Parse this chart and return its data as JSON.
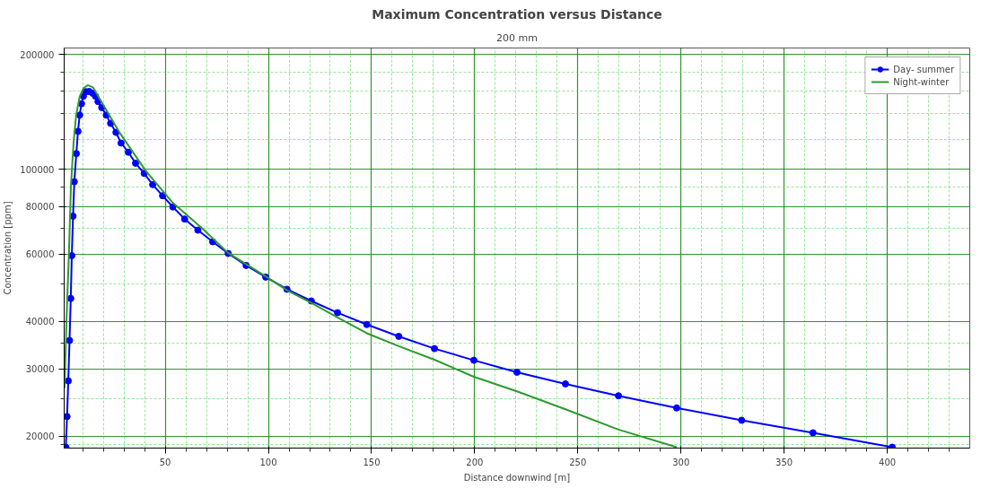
{
  "chart_data": {
    "type": "line",
    "title": "Maximum Concentration versus Distance",
    "subtitle": "200 mm",
    "xlabel": "Distance downwind [m]",
    "ylabel": "Concentration [ppm]",
    "log": "y",
    "grid": true,
    "legend": "top right",
    "line_style": "solid",
    "xlim": [
      1,
      440
    ],
    "ylim": [
      18600,
      208000
    ],
    "xticks": [
      {
        "value": 10,
        "label": null
      },
      {
        "value": 20,
        "label": null
      },
      {
        "value": 30,
        "label": null
      },
      {
        "value": 40,
        "label": null
      },
      50,
      {
        "value": 60,
        "label": null
      },
      {
        "value": 70,
        "label": null
      },
      {
        "value": 80,
        "label": null
      },
      {
        "value": 90,
        "label": null
      },
      100,
      {
        "value": 110,
        "label": null
      },
      {
        "value": 120,
        "label": null
      },
      {
        "value": 130,
        "label": null
      },
      {
        "value": 140,
        "label": null
      },
      150,
      {
        "value": 160,
        "label": null
      },
      {
        "value": 170,
        "label": null
      },
      {
        "value": 180,
        "label": null
      },
      {
        "value": 190,
        "label": null
      },
      200,
      {
        "value": 210,
        "label": null
      },
      {
        "value": 220,
        "label": null
      },
      {
        "value": 230,
        "label": null
      },
      {
        "value": 240,
        "label": null
      },
      250,
      {
        "value": 260,
        "label": null
      },
      {
        "value": 270,
        "label": null
      },
      {
        "value": 280,
        "label": null
      },
      {
        "value": 290,
        "label": null
      },
      300,
      {
        "value": 310,
        "label": null
      },
      {
        "value": 320,
        "label": null
      },
      {
        "value": 330,
        "label": null
      },
      {
        "value": 340,
        "label": null
      },
      350,
      {
        "value": 360,
        "label": null
      },
      {
        "value": 370,
        "label": null
      },
      {
        "value": 380,
        "label": null
      },
      {
        "value": 390,
        "label": null
      },
      400,
      {
        "value": 410,
        "label": null
      },
      {
        "value": 420,
        "label": null
      },
      {
        "value": 430,
        "label": null
      }
    ],
    "yticks": [
      {
        "value": 19000,
        "label": null
      },
      20000,
      {
        "value": 25000,
        "label": null
      },
      30000,
      {
        "value": 35000,
        "label": null
      },
      40000,
      {
        "value": 50000,
        "label": null
      },
      60000,
      {
        "value": 70000,
        "label": null
      },
      80000,
      {
        "value": 90000,
        "label": null
      },
      100000,
      {
        "value": 120000,
        "label": null
      },
      {
        "value": 140000,
        "label": null
      },
      {
        "value": 160000,
        "label": null
      },
      {
        "value": 180000,
        "label": null
      },
      200000
    ],
    "series": [
      {
        "name": "Day- summer",
        "color": "#0000ff",
        "marker": "circle",
        "x": [
          1.8,
          2.4,
          3.0,
          3.6,
          4.2,
          4.7,
          5.3,
          5.9,
          6.9,
          7.7,
          8.5,
          9.4,
          10.3,
          11.5,
          13.1,
          14.9,
          16.2,
          17.4,
          19.2,
          21.4,
          23.5,
          26.1,
          28.6,
          32.1,
          35.6,
          39.8,
          43.9,
          48.7,
          53.7,
          59.4,
          65.8,
          73.0,
          80.5,
          89.2,
          98.7,
          109.0,
          120.8,
          133.5,
          147.7,
          163.2,
          180.5,
          199.6,
          220.5,
          244.0,
          269.7,
          297.9,
          329.4,
          364.0,
          402.4
        ],
        "values": [
          18700,
          22500,
          27900,
          35600,
          45900,
          59400,
          75400,
          92800,
          110000,
          125800,
          138700,
          148600,
          155500,
          159800,
          160000,
          158200,
          155500,
          150500,
          145200,
          138700,
          132000,
          125000,
          117200,
          110900,
          103800,
          97600,
          91200,
          85300,
          79700,
          74100,
          69300,
          64600,
          60200,
          56000,
          52200,
          48500,
          45200,
          42100,
          39200,
          36500,
          33900,
          31600,
          29400,
          27400,
          25500,
          23700,
          22000,
          20400,
          18700
        ]
      },
      {
        "name": "Night-winter",
        "color": "#2e9a2e",
        "marker": "none",
        "x": [
          1.2,
          2.1,
          3.3,
          4.3,
          5.6,
          6.8,
          8.5,
          10.3,
          12.4,
          15.0,
          19.2,
          27.8,
          40.6,
          53.4,
          68.0,
          80.3,
          98.7,
          109.0,
          120.8,
          133.5,
          147.7,
          163.2,
          180.5,
          199.6,
          220.5,
          244.0,
          269.7,
          297.9
        ],
        "values": [
          26700,
          40000,
          60000,
          90800,
          118600,
          138700,
          154900,
          163000,
          166200,
          164000,
          150000,
          125000,
          99000,
          82000,
          70000,
          60500,
          52400,
          48200,
          44700,
          40900,
          37200,
          34400,
          31700,
          28600,
          26200,
          23500,
          20800,
          18700
        ]
      }
    ]
  }
}
